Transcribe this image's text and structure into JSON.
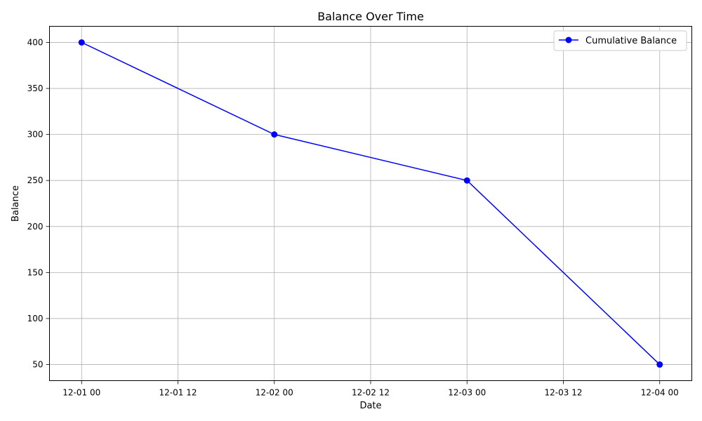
{
  "chart_data": {
    "type": "line",
    "title": "Balance Over Time",
    "xlabel": "Date",
    "ylabel": "Balance",
    "x": [
      "12-01 00",
      "12-02 00",
      "12-03 00",
      "12-04 00"
    ],
    "series": [
      {
        "name": "Cumulative Balance",
        "values": [
          400,
          300,
          250,
          50
        ],
        "color": "#0000ff",
        "marker": "circle"
      }
    ],
    "x_ticks": [
      "12-01 00",
      "12-01 12",
      "12-02 00",
      "12-02 12",
      "12-03 00",
      "12-03 12",
      "12-04 00"
    ],
    "y_ticks": [
      50,
      100,
      150,
      200,
      250,
      300,
      350,
      400
    ],
    "xlim": [
      "11-30 20",
      "12-04 04"
    ],
    "ylim": [
      32.5,
      417.5
    ],
    "grid": true,
    "legend_position": "top-right"
  }
}
